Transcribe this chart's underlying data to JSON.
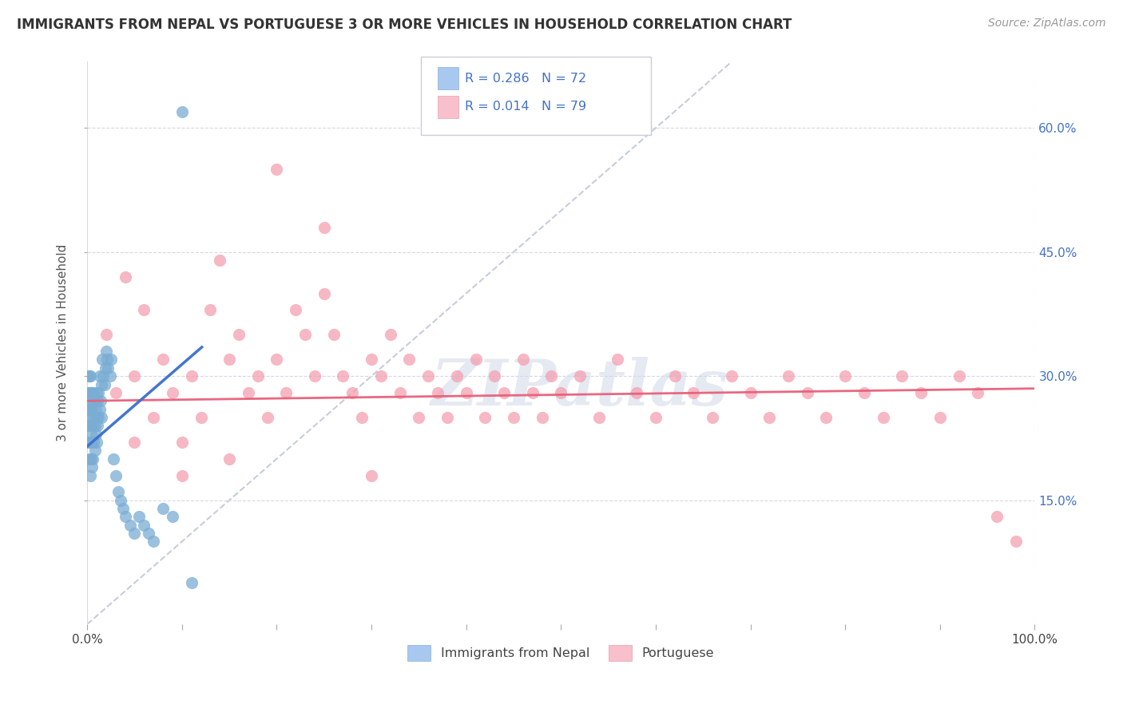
{
  "title": "IMMIGRANTS FROM NEPAL VS PORTUGUESE 3 OR MORE VEHICLES IN HOUSEHOLD CORRELATION CHART",
  "source": "Source: ZipAtlas.com",
  "ylabel": "3 or more Vehicles in Household",
  "ytick_labels": [
    "15.0%",
    "30.0%",
    "45.0%",
    "60.0%"
  ],
  "ytick_values": [
    0.15,
    0.3,
    0.45,
    0.6
  ],
  "xlim": [
    0.0,
    1.0
  ],
  "ylim": [
    0.0,
    0.68
  ],
  "nepal_color": "#7aadd4",
  "portuguese_color": "#f4a0b0",
  "nepal_trend_color": "#3a6fcc",
  "portuguese_trend_color": "#e8607a",
  "diagonal_color": "#c0c8d8",
  "watermark_text": "ZIPatlas",
  "nepal_R": 0.286,
  "nepal_N": 72,
  "portuguese_R": 0.014,
  "portuguese_N": 79,
  "nepal_scatter_x": [
    0.001,
    0.001,
    0.001,
    0.001,
    0.001,
    0.002,
    0.002,
    0.002,
    0.002,
    0.002,
    0.002,
    0.003,
    0.003,
    0.003,
    0.003,
    0.003,
    0.004,
    0.004,
    0.004,
    0.004,
    0.005,
    0.005,
    0.005,
    0.005,
    0.006,
    0.006,
    0.006,
    0.007,
    0.007,
    0.007,
    0.008,
    0.008,
    0.008,
    0.009,
    0.009,
    0.01,
    0.01,
    0.01,
    0.011,
    0.011,
    0.012,
    0.012,
    0.013,
    0.013,
    0.014,
    0.015,
    0.015,
    0.016,
    0.017,
    0.018,
    0.019,
    0.02,
    0.021,
    0.022,
    0.024,
    0.025,
    0.028,
    0.03,
    0.033,
    0.035,
    0.038,
    0.04,
    0.045,
    0.05,
    0.055,
    0.06,
    0.065,
    0.07,
    0.08,
    0.09,
    0.1,
    0.11
  ],
  "nepal_scatter_y": [
    0.22,
    0.24,
    0.26,
    0.28,
    0.3,
    0.2,
    0.22,
    0.24,
    0.26,
    0.28,
    0.3,
    0.18,
    0.22,
    0.24,
    0.27,
    0.3,
    0.2,
    0.23,
    0.26,
    0.28,
    0.19,
    0.22,
    0.25,
    0.28,
    0.2,
    0.24,
    0.27,
    0.22,
    0.25,
    0.28,
    0.21,
    0.24,
    0.27,
    0.23,
    0.26,
    0.22,
    0.25,
    0.28,
    0.24,
    0.27,
    0.25,
    0.28,
    0.26,
    0.3,
    0.27,
    0.25,
    0.29,
    0.32,
    0.3,
    0.29,
    0.31,
    0.33,
    0.32,
    0.31,
    0.3,
    0.32,
    0.2,
    0.18,
    0.16,
    0.15,
    0.14,
    0.13,
    0.12,
    0.11,
    0.13,
    0.12,
    0.11,
    0.1,
    0.14,
    0.13,
    0.62,
    0.05
  ],
  "portuguese_scatter_x": [
    0.02,
    0.03,
    0.04,
    0.05,
    0.06,
    0.07,
    0.08,
    0.09,
    0.1,
    0.11,
    0.12,
    0.13,
    0.14,
    0.15,
    0.16,
    0.17,
    0.18,
    0.19,
    0.2,
    0.21,
    0.22,
    0.23,
    0.24,
    0.25,
    0.26,
    0.27,
    0.28,
    0.29,
    0.3,
    0.31,
    0.32,
    0.33,
    0.34,
    0.35,
    0.36,
    0.37,
    0.38,
    0.39,
    0.4,
    0.41,
    0.42,
    0.43,
    0.44,
    0.45,
    0.46,
    0.47,
    0.48,
    0.49,
    0.5,
    0.52,
    0.54,
    0.56,
    0.58,
    0.6,
    0.62,
    0.64,
    0.66,
    0.68,
    0.7,
    0.72,
    0.74,
    0.76,
    0.78,
    0.8,
    0.82,
    0.84,
    0.86,
    0.88,
    0.9,
    0.92,
    0.94,
    0.96,
    0.98,
    0.05,
    0.1,
    0.15,
    0.2,
    0.25,
    0.3
  ],
  "portuguese_scatter_y": [
    0.35,
    0.28,
    0.42,
    0.3,
    0.38,
    0.25,
    0.32,
    0.28,
    0.22,
    0.3,
    0.25,
    0.38,
    0.44,
    0.32,
    0.35,
    0.28,
    0.3,
    0.25,
    0.32,
    0.28,
    0.38,
    0.35,
    0.3,
    0.4,
    0.35,
    0.3,
    0.28,
    0.25,
    0.32,
    0.3,
    0.35,
    0.28,
    0.32,
    0.25,
    0.3,
    0.28,
    0.25,
    0.3,
    0.28,
    0.32,
    0.25,
    0.3,
    0.28,
    0.25,
    0.32,
    0.28,
    0.25,
    0.3,
    0.28,
    0.3,
    0.25,
    0.32,
    0.28,
    0.25,
    0.3,
    0.28,
    0.25,
    0.3,
    0.28,
    0.25,
    0.3,
    0.28,
    0.25,
    0.3,
    0.28,
    0.25,
    0.3,
    0.28,
    0.25,
    0.3,
    0.28,
    0.13,
    0.1,
    0.22,
    0.18,
    0.2,
    0.55,
    0.48,
    0.18
  ]
}
